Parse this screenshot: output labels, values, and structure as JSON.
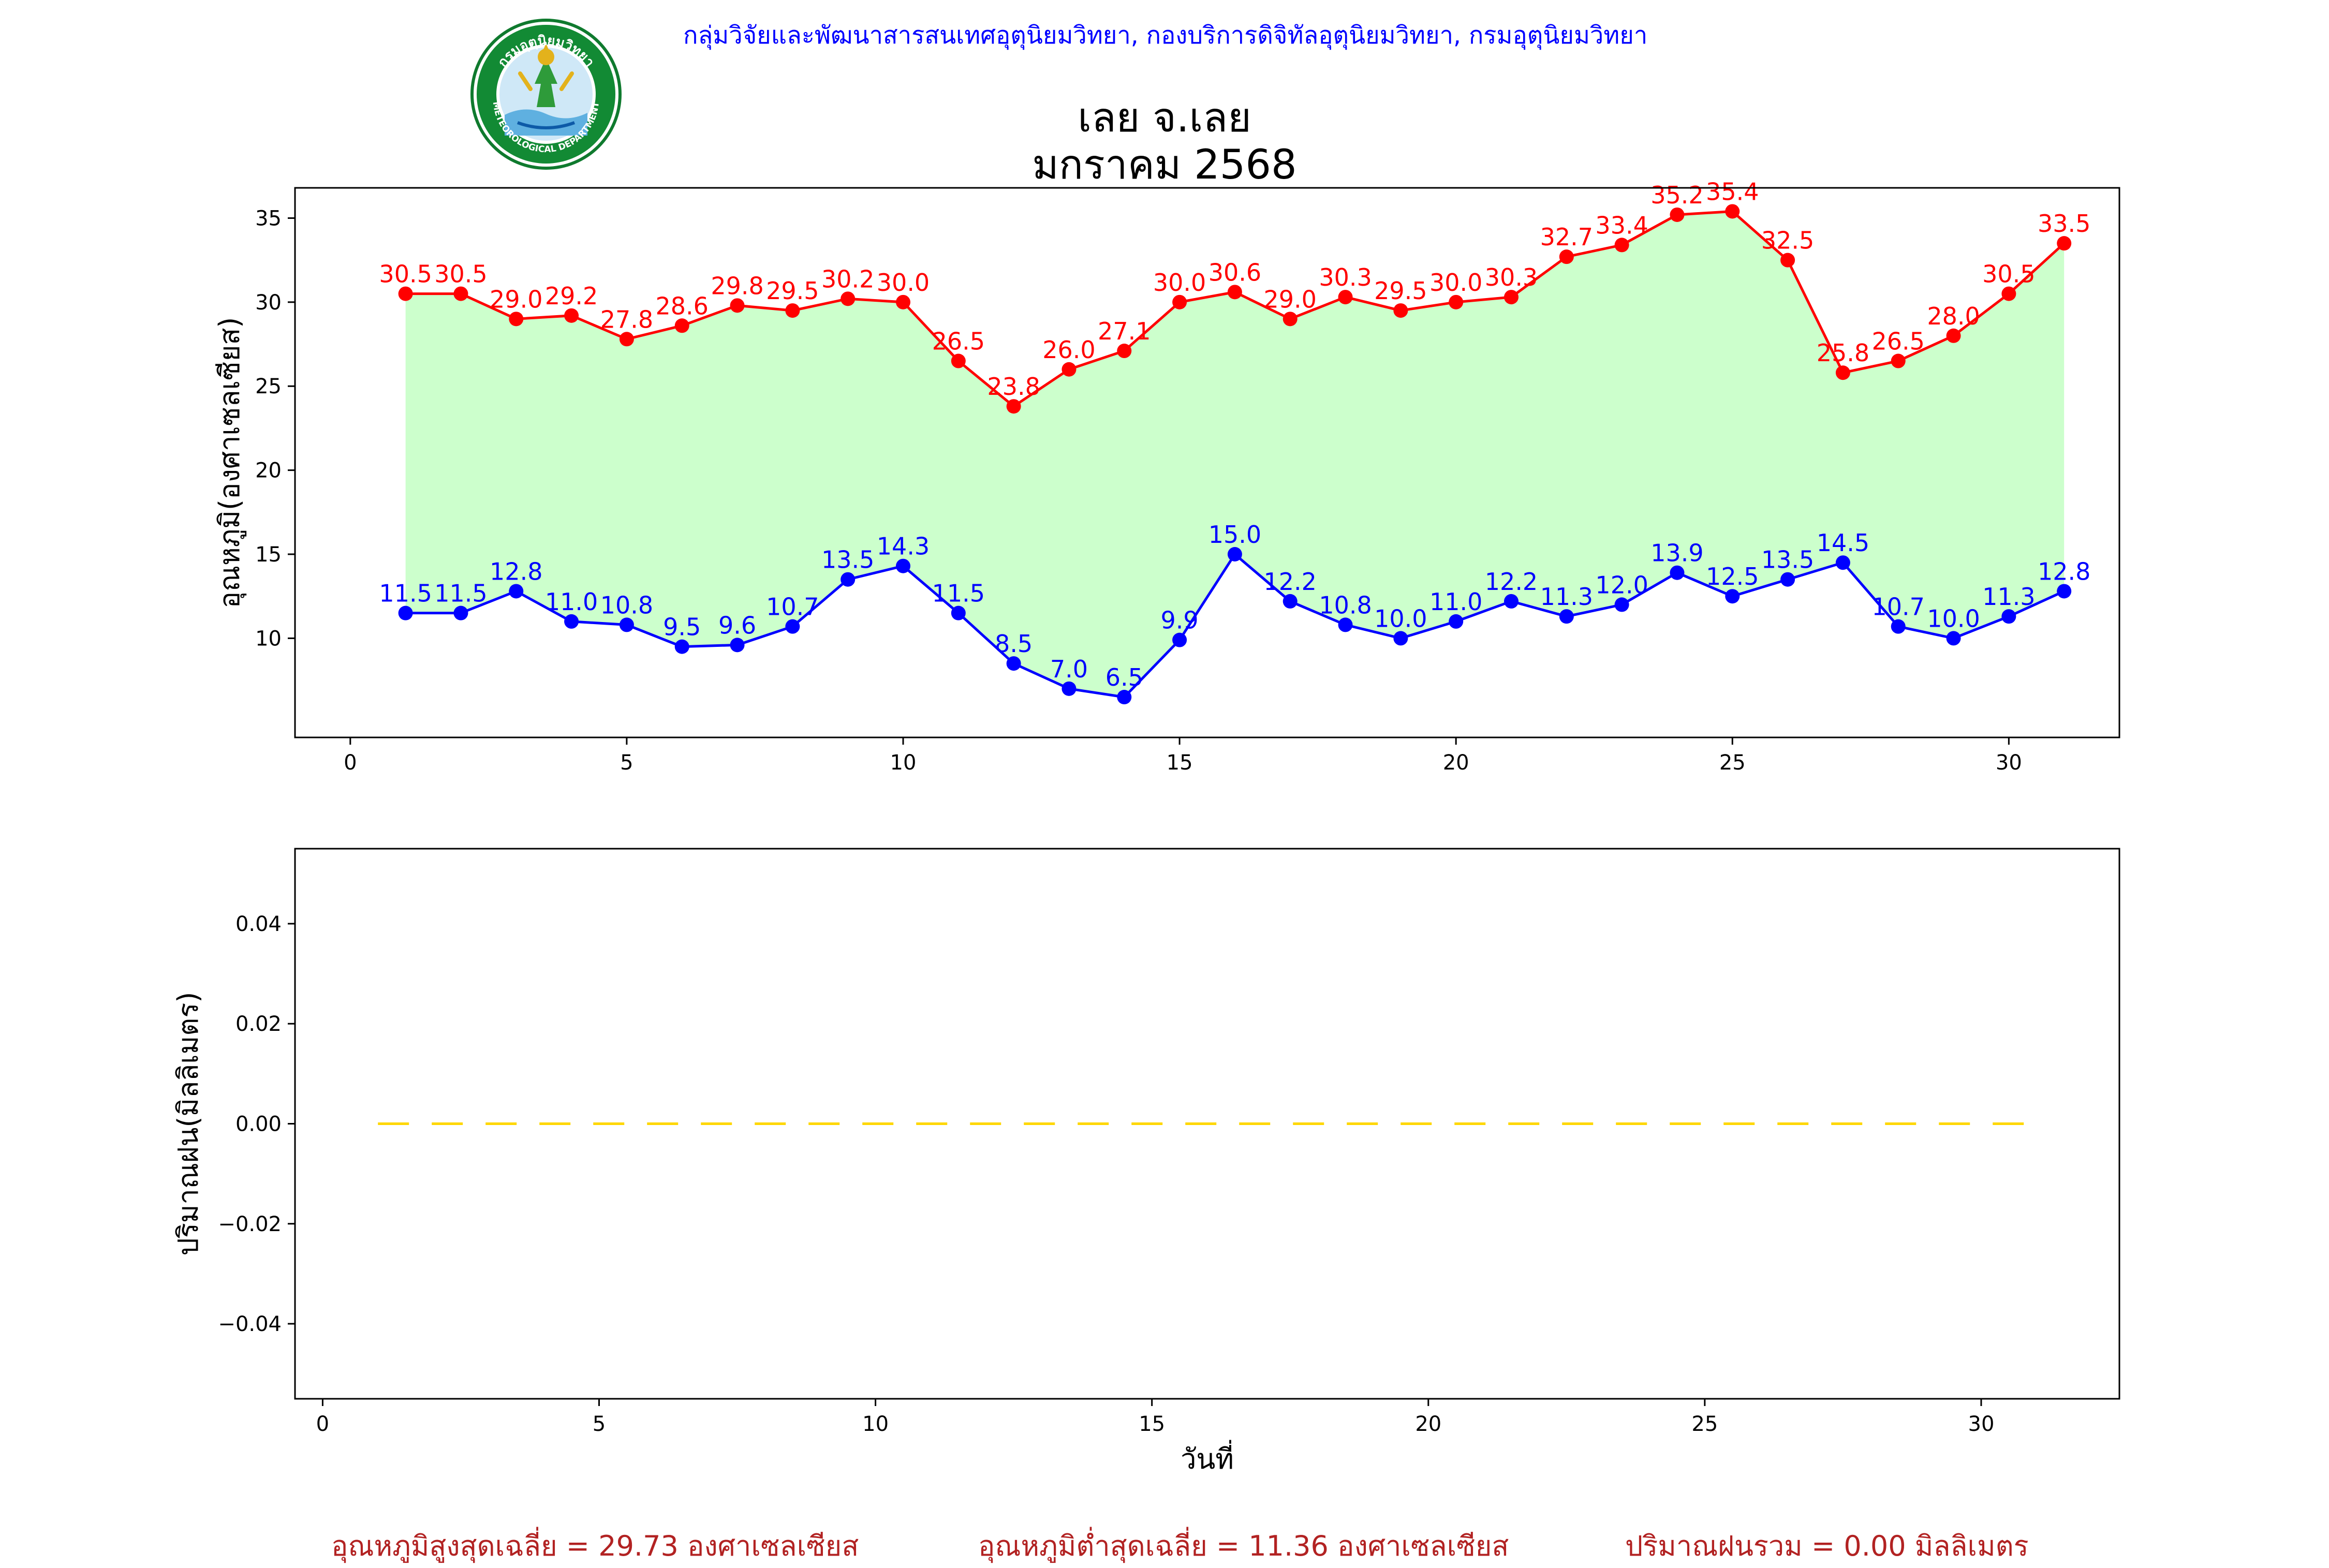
{
  "header": {
    "organization": "กลุ่มวิจัยและพัฒนาสารสนเทศอุตุนิยมวิทยา, กองบริการดิจิทัลอุตุนิยมวิทยา, กรมอุตุนิยมวิทยา",
    "logo_top_text": "กรมอุตุนิยมวิทยา",
    "logo_bottom_text": "METEOROLOGICAL DEPARTMENT",
    "title": "เลย จ.เลย",
    "subtitle": "มกราคม 2568"
  },
  "chart_data": [
    {
      "type": "line",
      "ylabel": "อุณหภูมิ(องศาเซลเซียส)",
      "xlabel": "",
      "xlim": [
        -1,
        32
      ],
      "ylim": [
        4.1,
        36.8
      ],
      "xticks": [
        0,
        5,
        10,
        15,
        20,
        25,
        30
      ],
      "yticks": [
        10,
        15,
        20,
        25,
        30,
        35
      ],
      "fill_between": "max-min",
      "colors": {
        "max": "#ff0000",
        "min": "#0000ff",
        "fill": "#ccffcc"
      },
      "x": [
        1,
        2,
        3,
        4,
        5,
        6,
        7,
        8,
        9,
        10,
        11,
        12,
        13,
        14,
        15,
        16,
        17,
        18,
        19,
        20,
        21,
        22,
        23,
        24,
        25,
        26,
        27,
        28,
        29,
        30,
        31
      ],
      "series": [
        {
          "key": "max",
          "values": [
            30.5,
            30.5,
            29.0,
            29.2,
            27.8,
            28.6,
            29.8,
            29.5,
            30.2,
            30.0,
            26.5,
            23.8,
            26.0,
            27.1,
            30.0,
            30.6,
            29.0,
            30.3,
            29.5,
            30.0,
            30.3,
            32.7,
            33.4,
            35.2,
            35.4,
            32.5,
            25.8,
            26.5,
            28.0,
            30.5,
            33.5
          ]
        },
        {
          "key": "min",
          "values": [
            11.5,
            11.5,
            12.8,
            11.0,
            10.8,
            9.5,
            9.6,
            10.7,
            13.5,
            14.3,
            11.5,
            8.5,
            7.0,
            6.5,
            9.9,
            15.0,
            12.2,
            10.8,
            10.0,
            11.0,
            12.2,
            11.3,
            12.0,
            13.9,
            12.5,
            13.5,
            14.5,
            10.7,
            10.0,
            11.3,
            12.8
          ]
        }
      ]
    },
    {
      "type": "line",
      "ylabel": "ปริมาณฝน(มิลลิเมตร)",
      "xlabel": "วันที่",
      "xlim": [
        -0.5,
        32.5
      ],
      "ylim": [
        -0.055,
        0.055
      ],
      "xticks": [
        0,
        5,
        10,
        15,
        20,
        25,
        30
      ],
      "yticks": [
        -0.04,
        -0.02,
        0.0,
        0.02,
        0.04
      ],
      "ytick_labels": [
        "−0.04",
        "−0.02",
        "0.00",
        "0.02",
        "0.04"
      ],
      "line_style": "dashed",
      "colors": {
        "rain": "#ffd700"
      },
      "x": [
        1,
        2,
        3,
        4,
        5,
        6,
        7,
        8,
        9,
        10,
        11,
        12,
        13,
        14,
        15,
        16,
        17,
        18,
        19,
        20,
        21,
        22,
        23,
        24,
        25,
        26,
        27,
        28,
        29,
        30,
        31
      ],
      "series": [
        {
          "key": "rain",
          "values": [
            0,
            0,
            0,
            0,
            0,
            0,
            0,
            0,
            0,
            0,
            0,
            0,
            0,
            0,
            0,
            0,
            0,
            0,
            0,
            0,
            0,
            0,
            0,
            0,
            0,
            0,
            0,
            0,
            0,
            0,
            0
          ]
        }
      ]
    }
  ],
  "footer": {
    "avg_max": "อุณหภูมิสูงสุดเฉลี่ย = 29.73 องศาเซลเซียส",
    "avg_min": "อุณหภูมิต่ำสุดเฉลี่ย = 11.36 องศาเซลเซียส",
    "total_rain": "ปริมาณฝนรวม = 0.00 มิลลิเมตร"
  }
}
